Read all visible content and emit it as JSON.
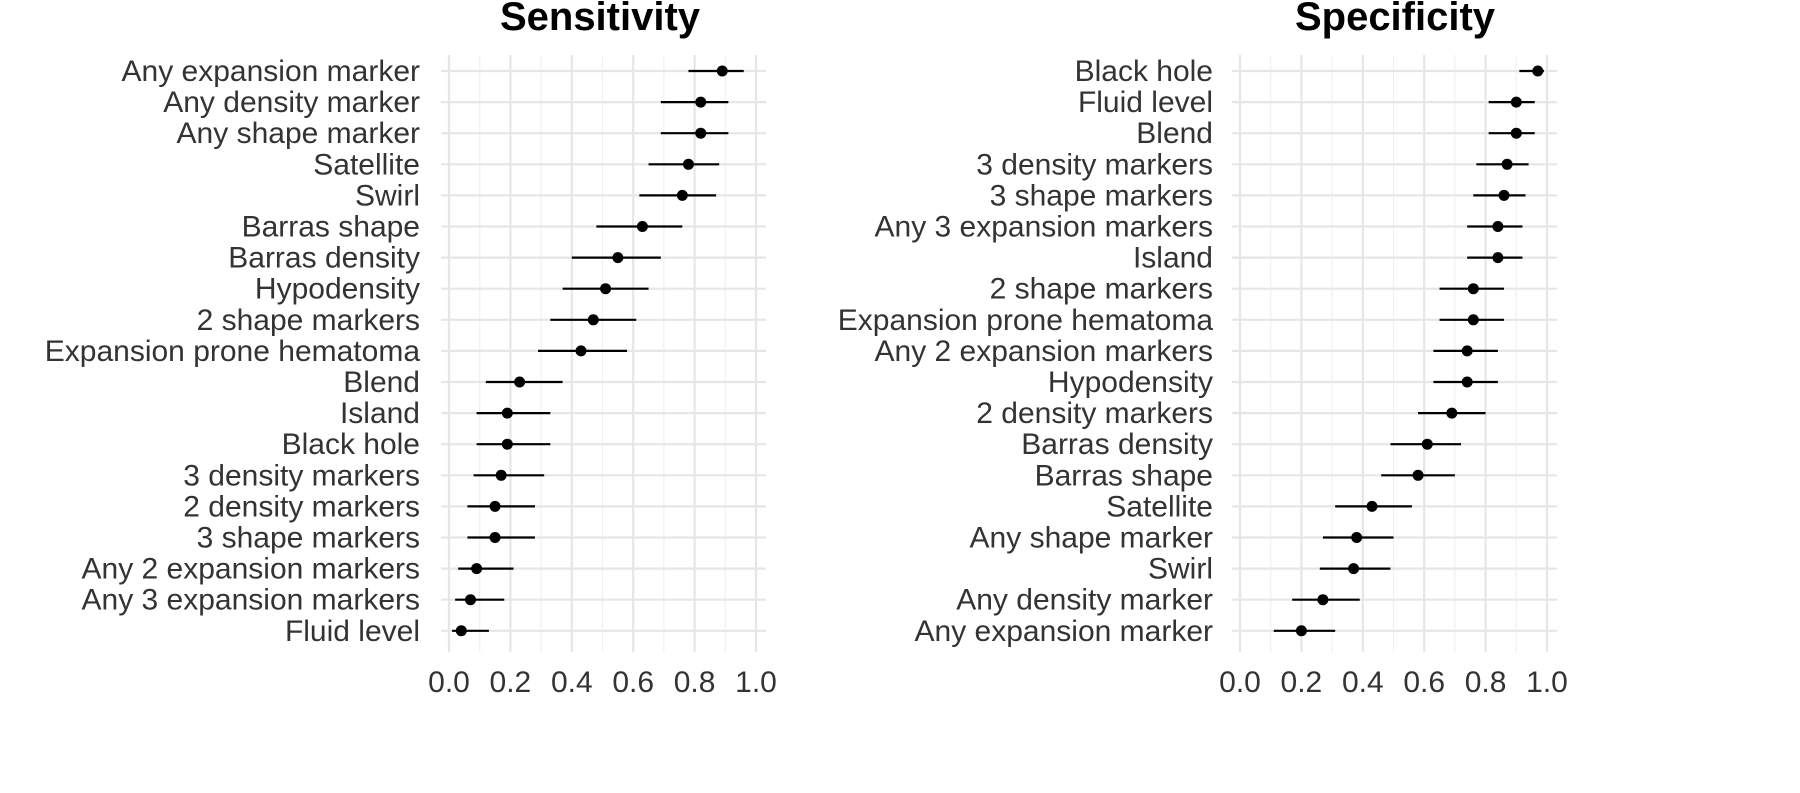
{
  "chart_data": [
    {
      "type": "scatter",
      "title": "Sensitivity",
      "xlim": [
        0.0,
        1.0
      ],
      "xticks": [
        "0.0",
        "0.2",
        "0.4",
        "0.6",
        "0.8",
        "1.0"
      ],
      "grid": true,
      "categories": [
        "Any expansion marker",
        "Any density marker",
        "Any shape marker",
        "Satellite",
        "Swirl",
        "Barras shape",
        "Barras density",
        "Hypodensity",
        "2 shape markers",
        "Expansion prone hematoma",
        "Blend",
        "Island",
        "Black hole",
        "3 density markers",
        "2 density markers",
        "3 shape markers",
        "Any 2 expansion markers",
        "Any 3 expansion markers",
        "Fluid level"
      ],
      "estimate": [
        0.89,
        0.82,
        0.82,
        0.78,
        0.76,
        0.63,
        0.55,
        0.51,
        0.47,
        0.43,
        0.23,
        0.19,
        0.19,
        0.17,
        0.15,
        0.15,
        0.09,
        0.07,
        0.04
      ],
      "lower": [
        0.78,
        0.69,
        0.69,
        0.65,
        0.62,
        0.48,
        0.4,
        0.37,
        0.33,
        0.29,
        0.12,
        0.09,
        0.09,
        0.08,
        0.06,
        0.06,
        0.03,
        0.02,
        0.01
      ],
      "upper": [
        0.96,
        0.91,
        0.91,
        0.88,
        0.87,
        0.76,
        0.69,
        0.65,
        0.61,
        0.58,
        0.37,
        0.33,
        0.33,
        0.31,
        0.28,
        0.28,
        0.21,
        0.18,
        0.13
      ]
    },
    {
      "type": "scatter",
      "title": "Specificity",
      "xlim": [
        0.0,
        1.0
      ],
      "xticks": [
        "0.0",
        "0.2",
        "0.4",
        "0.6",
        "0.8",
        "1.0"
      ],
      "grid": true,
      "categories": [
        "Black hole",
        "Fluid level",
        "Blend",
        "3 density markers",
        "3 shape markers",
        "Any 3 expansion markers",
        "Island",
        "2 shape markers",
        "Expansion prone hematoma",
        "Any 2 expansion markers",
        "Hypodensity",
        "2 density markers",
        "Barras density",
        "Barras shape",
        "Satellite",
        "Any shape marker",
        "Swirl",
        "Any density marker",
        "Any expansion marker"
      ],
      "estimate": [
        0.97,
        0.9,
        0.9,
        0.87,
        0.86,
        0.84,
        0.84,
        0.76,
        0.76,
        0.74,
        0.74,
        0.69,
        0.61,
        0.58,
        0.43,
        0.38,
        0.37,
        0.27,
        0.2
      ],
      "lower": [
        0.91,
        0.81,
        0.81,
        0.77,
        0.76,
        0.74,
        0.74,
        0.65,
        0.65,
        0.63,
        0.63,
        0.58,
        0.49,
        0.46,
        0.31,
        0.27,
        0.26,
        0.17,
        0.11
      ],
      "upper": [
        0.99,
        0.96,
        0.96,
        0.94,
        0.93,
        0.92,
        0.92,
        0.86,
        0.86,
        0.84,
        0.84,
        0.8,
        0.72,
        0.7,
        0.56,
        0.5,
        0.49,
        0.39,
        0.31
      ]
    }
  ]
}
